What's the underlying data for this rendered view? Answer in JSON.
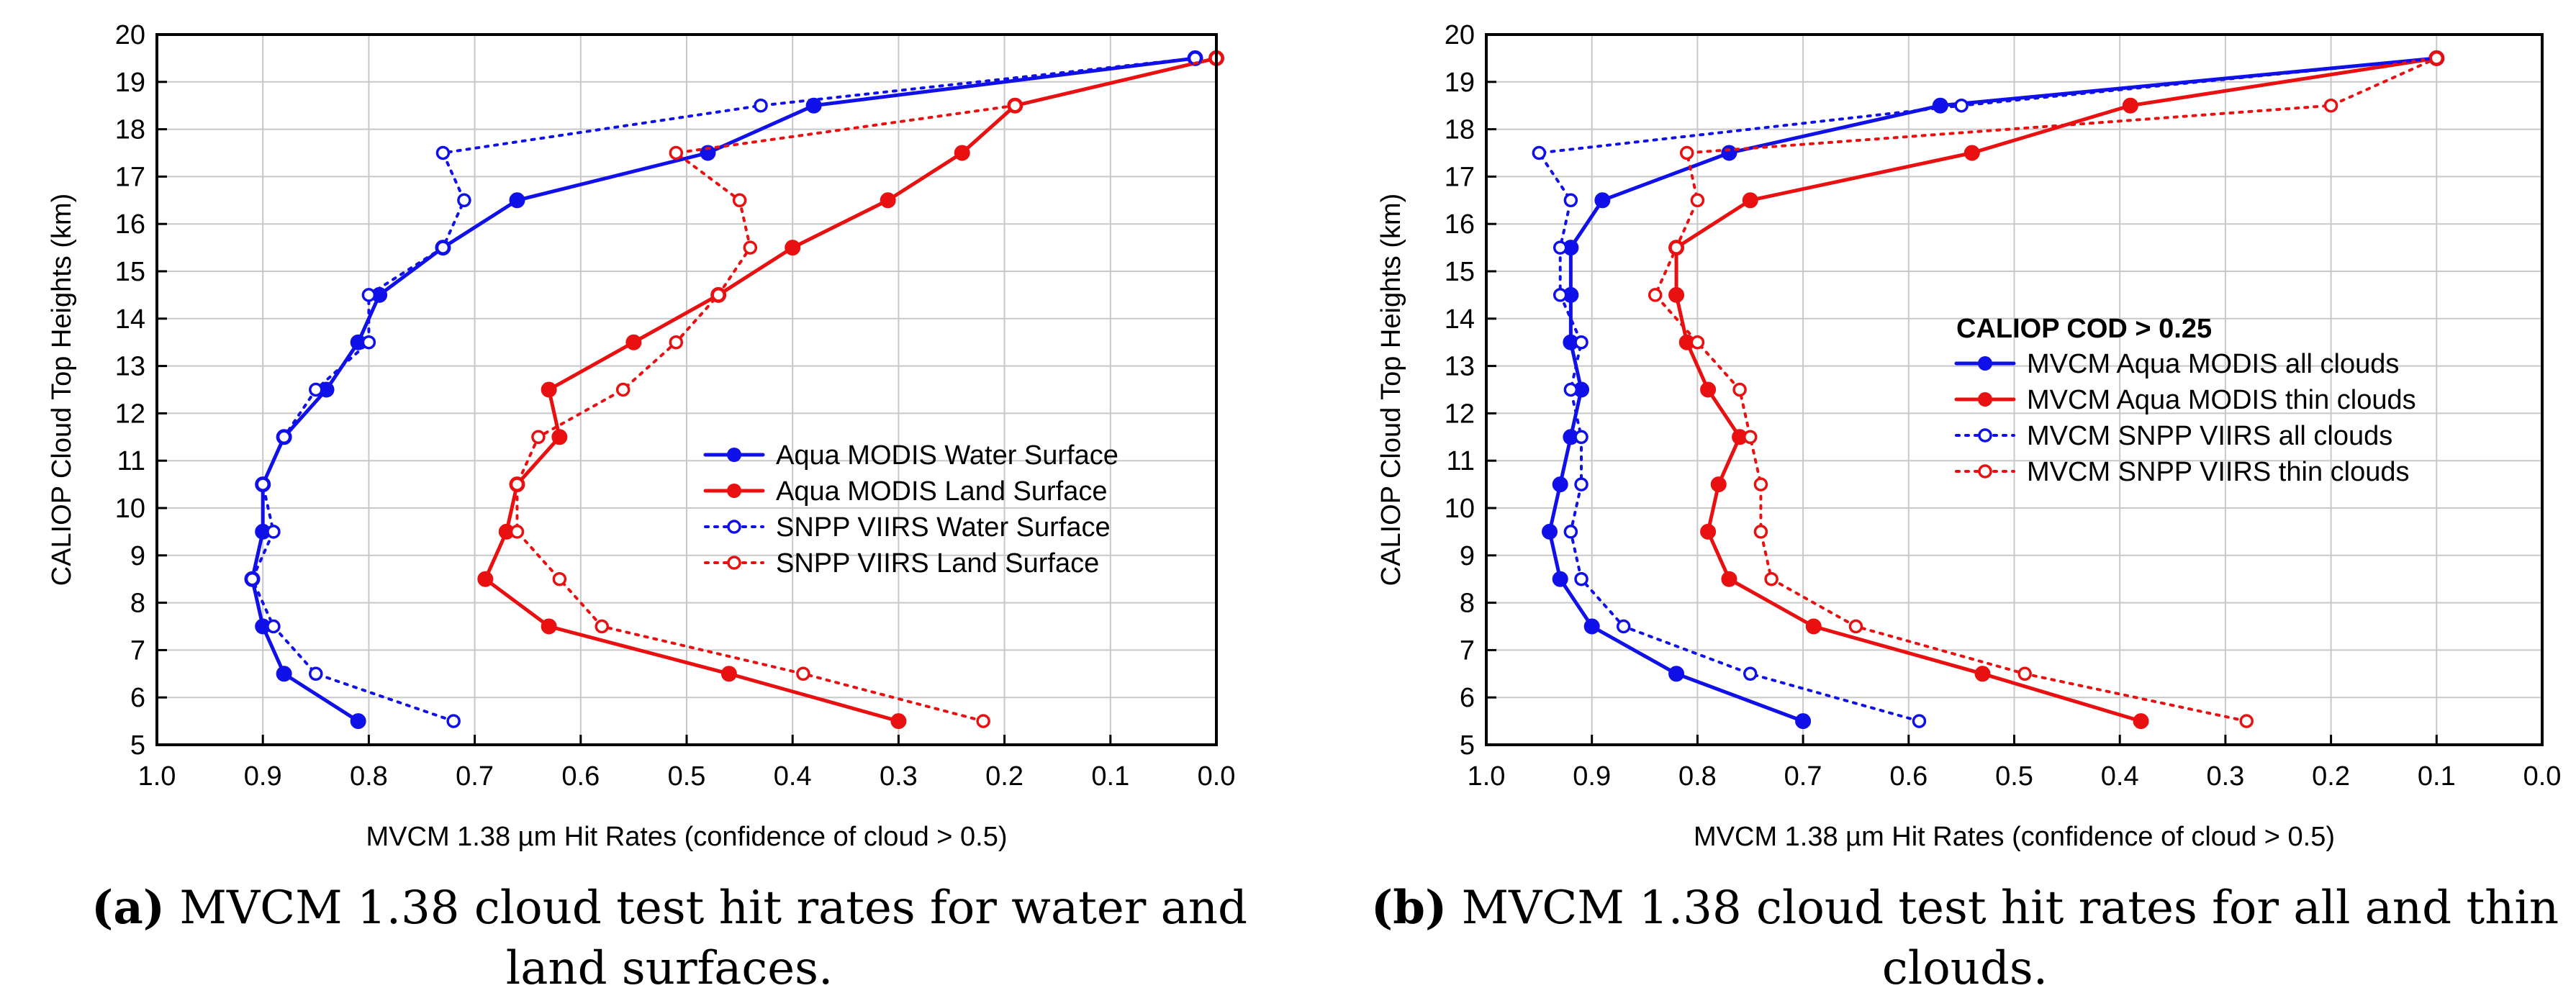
{
  "charts": [
    {
      "id": "a",
      "title": "",
      "xlabel": "MVCM 1.38 µm Hit Rates (confidence of cloud > 0.5)",
      "ylabel": "CALIOP Cloud Top Heights (km)",
      "caption_label": "(a)",
      "caption_text": "MVCM 1.38 cloud test hit rates for water and land surfaces.",
      "legend_title": ""
    },
    {
      "id": "b",
      "title": "",
      "xlabel": "MVCM 1.38 µm Hit Rates (confidence of cloud > 0.5)",
      "ylabel": "CALIOP Cloud Top Heights (km)",
      "caption_label": "(b)",
      "caption_text": "MVCM 1.38 cloud test hit rates for all and thin clouds.",
      "legend_title": "CALIOP COD > 0.25"
    }
  ],
  "chart_data": [
    {
      "type": "line",
      "x_reversed": true,
      "xlim": [
        0.0,
        1.0
      ],
      "ylim": [
        5,
        20
      ],
      "xticks": [
        "1.0",
        "0.9",
        "0.8",
        "0.7",
        "0.6",
        "0.5",
        "0.4",
        "0.3",
        "0.2",
        "0.1",
        "0.0"
      ],
      "yticks": [
        "5",
        "6",
        "7",
        "8",
        "9",
        "10",
        "11",
        "12",
        "13",
        "14",
        "15",
        "16",
        "17",
        "18",
        "19",
        "20"
      ],
      "grid": true,
      "legend_position": "center-right",
      "xlabel": "MVCM 1.38 µm Hit Rates (confidence of cloud > 0.5)",
      "ylabel": "CALIOP Cloud Top Heights (km)",
      "heights": [
        5.5,
        6.5,
        7.5,
        8.5,
        9.5,
        10.5,
        11.5,
        12.5,
        13.5,
        14.5,
        15.5,
        16.5,
        17.5,
        18.5,
        19.5
      ],
      "series": [
        {
          "name": "Aqua MODIS Water Surface",
          "color": "#1010e8",
          "style": "solid",
          "marker": "filled",
          "values": [
            0.81,
            0.88,
            0.9,
            0.91,
            0.9,
            0.9,
            0.88,
            0.84,
            0.81,
            0.79,
            0.73,
            0.66,
            0.48,
            0.38,
            0.02
          ]
        },
        {
          "name": "Aqua MODIS Land Surface",
          "color": "#e81010",
          "style": "solid",
          "marker": "filled",
          "values": [
            0.3,
            0.46,
            0.63,
            0.69,
            0.67,
            0.66,
            0.62,
            0.63,
            0.55,
            0.47,
            0.4,
            0.31,
            0.24,
            0.19,
            0.0
          ]
        },
        {
          "name": "SNPP VIIRS Water Surface",
          "color": "#1010e8",
          "style": "dotted",
          "marker": "open",
          "values": [
            0.72,
            0.85,
            0.89,
            0.91,
            0.89,
            0.9,
            0.88,
            0.85,
            0.8,
            0.8,
            0.73,
            0.71,
            0.73,
            0.43,
            0.02
          ]
        },
        {
          "name": "SNPP VIIRS Land Surface",
          "color": "#e81010",
          "style": "dotted",
          "marker": "open",
          "values": [
            0.22,
            0.39,
            0.58,
            0.62,
            0.66,
            0.66,
            0.64,
            0.56,
            0.51,
            0.47,
            0.44,
            0.45,
            0.51,
            0.19,
            0.0
          ]
        }
      ]
    },
    {
      "type": "line",
      "x_reversed": true,
      "xlim": [
        0.0,
        1.0
      ],
      "ylim": [
        5,
        20
      ],
      "xticks": [
        "1.0",
        "0.9",
        "0.8",
        "0.7",
        "0.6",
        "0.5",
        "0.4",
        "0.3",
        "0.2",
        "0.1",
        "0.0"
      ],
      "yticks": [
        "5",
        "6",
        "7",
        "8",
        "9",
        "10",
        "11",
        "12",
        "13",
        "14",
        "15",
        "16",
        "17",
        "18",
        "19",
        "20"
      ],
      "grid": true,
      "legend_position": "center-right",
      "legend_title": "CALIOP COD > 0.25",
      "xlabel": "MVCM 1.38 µm Hit Rates (confidence of cloud > 0.5)",
      "ylabel": "CALIOP Cloud Top Heights (km)",
      "heights": [
        5.5,
        6.5,
        7.5,
        8.5,
        9.5,
        10.5,
        11.5,
        12.5,
        13.5,
        14.5,
        15.5,
        16.5,
        17.5,
        18.5,
        19.5
      ],
      "series": [
        {
          "name": "MVCM Aqua MODIS all clouds",
          "color": "#1010e8",
          "style": "solid",
          "marker": "filled",
          "values": [
            0.7,
            0.82,
            0.9,
            0.93,
            0.94,
            0.93,
            0.92,
            0.91,
            0.92,
            0.92,
            0.92,
            0.89,
            0.77,
            0.57,
            0.1
          ]
        },
        {
          "name": "MVCM Aqua MODIS thin clouds",
          "color": "#e81010",
          "style": "solid",
          "marker": "filled",
          "values": [
            0.38,
            0.53,
            0.69,
            0.77,
            0.79,
            0.78,
            0.76,
            0.79,
            0.81,
            0.82,
            0.82,
            0.75,
            0.54,
            0.39,
            0.1
          ]
        },
        {
          "name": "MVCM SNPP VIIRS all clouds",
          "color": "#1010e8",
          "style": "dotted",
          "marker": "open",
          "values": [
            0.59,
            0.75,
            0.87,
            0.91,
            0.92,
            0.91,
            0.91,
            0.92,
            0.91,
            0.93,
            0.93,
            0.92,
            0.95,
            0.55,
            0.1
          ]
        },
        {
          "name": "MVCM SNPP VIIRS thin clouds",
          "color": "#e81010",
          "style": "dotted",
          "marker": "open",
          "values": [
            0.28,
            0.49,
            0.65,
            0.73,
            0.74,
            0.74,
            0.75,
            0.76,
            0.8,
            0.84,
            0.82,
            0.8,
            0.81,
            0.2,
            0.1
          ]
        }
      ]
    }
  ]
}
